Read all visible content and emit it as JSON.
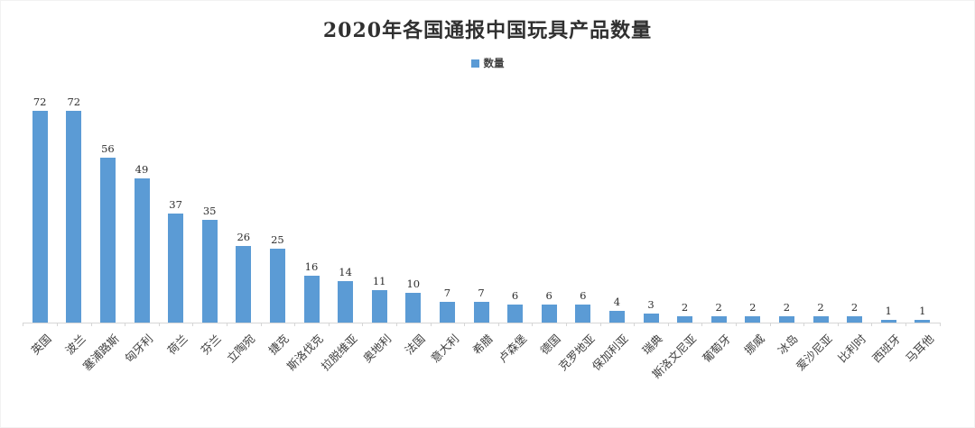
{
  "chart_data": {
    "type": "bar",
    "title": "2020年各国通报中国玩具产品数量",
    "series_name": "数量",
    "categories": [
      "英国",
      "波兰",
      "塞浦路斯",
      "匈牙利",
      "荷兰",
      "芬兰",
      "立陶宛",
      "捷克",
      "斯洛伐克",
      "拉脱维亚",
      "奥地利",
      "法国",
      "意大利",
      "希腊",
      "卢森堡",
      "德国",
      "克罗地亚",
      "保加利亚",
      "瑞典",
      "斯洛文尼亚",
      "葡萄牙",
      "挪威",
      "冰岛",
      "爱沙尼亚",
      "比利时",
      "西班牙",
      "马耳他"
    ],
    "values": [
      72,
      72,
      56,
      49,
      37,
      35,
      26,
      25,
      16,
      14,
      11,
      10,
      7,
      7,
      6,
      6,
      6,
      4,
      3,
      2,
      2,
      2,
      2,
      2,
      2,
      1,
      1
    ],
    "bar_color": "#5B9BD5",
    "axis_color": "#d6d6d6",
    "data_labels": true,
    "y_axis_visible": false,
    "grid": false,
    "ylim": [
      0,
      80
    ],
    "legend_position": "top",
    "x_label_rotation_deg": 45
  }
}
